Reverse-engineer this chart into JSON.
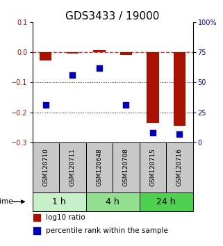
{
  "title": "GDS3433 / 19000",
  "samples": [
    "GSM120710",
    "GSM120711",
    "GSM120648",
    "GSM120708",
    "GSM120715",
    "GSM120716"
  ],
  "time_groups": [
    {
      "label": "1 h",
      "count": 2,
      "color": "#c8f0c8"
    },
    {
      "label": "4 h",
      "count": 2,
      "color": "#90e090"
    },
    {
      "label": "24 h",
      "count": 2,
      "color": "#50d050"
    }
  ],
  "log10_ratio": [
    -0.027,
    -0.005,
    0.008,
    -0.01,
    -0.235,
    -0.245
  ],
  "percentile_rank": [
    31,
    56,
    62,
    31,
    8,
    7
  ],
  "ylim_left": [
    -0.3,
    0.1
  ],
  "ylim_right": [
    0,
    100
  ],
  "yticks_left": [
    -0.3,
    -0.2,
    -0.1,
    0.0,
    0.1
  ],
  "yticks_right": [
    0,
    25,
    50,
    75,
    100
  ],
  "ytick_labels_right": [
    "0",
    "25",
    "50",
    "75",
    "100%"
  ],
  "red_color": "#aa1100",
  "blue_color": "#0000bb",
  "dashed_line_color": "#cc3333",
  "bar_width": 0.45,
  "dot_size": 35,
  "title_fontsize": 11,
  "tick_fontsize": 7,
  "label_fontsize": 7.5,
  "sample_label_fontsize": 6.5,
  "group_label_fontsize": 9,
  "sample_box_color": "#c8c8c8"
}
